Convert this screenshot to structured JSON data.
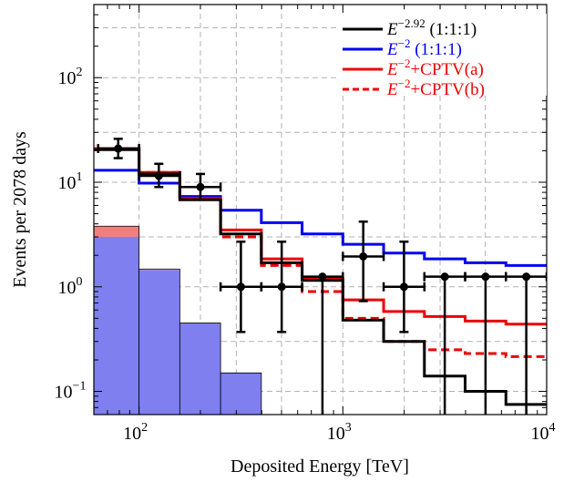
{
  "chart_data": {
    "type": "line",
    "xlabel": "Deposited Energy [TeV]",
    "ylabel": "Events per 2078 days",
    "x_scale": "log",
    "y_scale": "log",
    "xlim": [
      60,
      10000
    ],
    "ylim": [
      0.06,
      500
    ],
    "grid": true,
    "legend_position": "top-right",
    "x_tick_labels": [
      {
        "value": 100,
        "base": "10",
        "exp": "2"
      },
      {
        "value": 1000,
        "base": "10",
        "exp": "3"
      },
      {
        "value": 10000,
        "base": "10",
        "exp": "4"
      }
    ],
    "y_tick_labels": [
      {
        "value": 0.1,
        "base": "10",
        "exp": "−1"
      },
      {
        "value": 1,
        "base": "10",
        "exp": "0"
      },
      {
        "value": 10,
        "base": "10",
        "exp": "1"
      },
      {
        "value": 100,
        "base": "10",
        "exp": "2"
      }
    ],
    "bin_edges": [
      60,
      100,
      158.5,
      251.2,
      398.1,
      631,
      1000,
      1585,
      2512,
      3981,
      6310,
      10000
    ],
    "series": [
      {
        "name": "E^{-2.92} (1:1:1)",
        "legend_main": "E",
        "legend_sup": "−2.92",
        "legend_suffix": " (1:1:1)",
        "color": "#000000",
        "dash": false,
        "values": [
          20.5,
          12.0,
          6.8,
          3.2,
          1.7,
          1.15,
          0.48,
          0.3,
          0.14,
          0.1,
          0.075
        ]
      },
      {
        "name": "E^{-2} (1:1:1)",
        "legend_main": "E",
        "legend_sup": "−2",
        "legend_suffix": " (1:1:1)",
        "color": "#0000ee",
        "dash": false,
        "values": [
          13.0,
          9.8,
          7.3,
          5.4,
          4.1,
          3.2,
          2.55,
          2.1,
          1.85,
          1.7,
          1.6
        ]
      },
      {
        "name": "E^{-2}+CPTV(a)",
        "legend_main": "E",
        "legend_sup": "−2",
        "legend_suffix": "+CPTV(a)",
        "color": "#ee0000",
        "dash": false,
        "values": [
          21.0,
          12.4,
          7.0,
          3.5,
          1.85,
          1.2,
          0.75,
          0.58,
          0.52,
          0.47,
          0.44
        ]
      },
      {
        "name": "E^{-2}+CPTV(b)",
        "legend_main": "E",
        "legend_sup": "−2",
        "legend_suffix": "+CPTV(b)",
        "color": "#ee0000",
        "dash": true,
        "values": [
          21.0,
          12.4,
          7.0,
          3.0,
          1.6,
          0.9,
          0.5,
          0.3,
          0.25,
          0.23,
          0.215
        ]
      }
    ],
    "background": {
      "atm_mu_color": "#7f7fef",
      "atm_nu_color": "#ef7f7f",
      "lower": [
        3.0,
        1.45,
        0.45,
        0.15
      ],
      "upper": [
        3.8,
        1.48,
        0.45,
        0.15
      ]
    },
    "data_points": [
      {
        "x": 79,
        "y": 21,
        "xlo": 63,
        "xhi": 100,
        "ylo": 17,
        "yhi": 26
      },
      {
        "x": 125,
        "y": 11.5,
        "xlo": 100,
        "xhi": 158.5,
        "ylo": 9,
        "yhi": 15
      },
      {
        "x": 200,
        "y": 9,
        "xlo": 158.5,
        "xhi": 251.2,
        "ylo": 6.8,
        "yhi": 12
      },
      {
        "x": 316,
        "y": 1.0,
        "xlo": 251.2,
        "xhi": 398.1,
        "ylo": 0.37,
        "yhi": 2.7
      },
      {
        "x": 501,
        "y": 1.0,
        "xlo": 398.1,
        "xhi": 631,
        "ylo": 0.37,
        "yhi": 2.7
      },
      {
        "x": 794,
        "y": 1.25,
        "xlo": 631,
        "xhi": 1000,
        "ylo": 0.04,
        "yhi": 1.25
      },
      {
        "x": 1259,
        "y": 1.95,
        "xlo": 1000,
        "xhi": 1585,
        "ylo": 0.73,
        "yhi": 4.2
      },
      {
        "x": 1995,
        "y": 1.0,
        "xlo": 1585,
        "xhi": 2512,
        "ylo": 0.37,
        "yhi": 2.7
      },
      {
        "x": 3162,
        "y": 1.25,
        "xlo": 2512,
        "xhi": 3981,
        "ylo": 0.04,
        "yhi": 1.25
      },
      {
        "x": 5012,
        "y": 1.25,
        "xlo": 3981,
        "xhi": 6310,
        "ylo": 0.04,
        "yhi": 1.25
      },
      {
        "x": 7943,
        "y": 1.25,
        "xlo": 6310,
        "xhi": 10000,
        "ylo": 0.04,
        "yhi": 1.25
      }
    ]
  }
}
